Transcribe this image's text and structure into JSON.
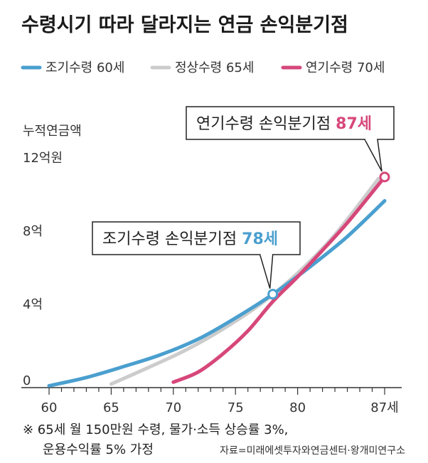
{
  "chart_data": {
    "type": "line",
    "title": "수령시기 따라 달라지는 연금 손익분기점",
    "ylabel": "누적연금액",
    "yunit": "12억원",
    "xlim": [
      60,
      87
    ],
    "ylim": [
      0,
      12
    ],
    "x_ticks": [
      60,
      65,
      70,
      75,
      80,
      87
    ],
    "x_tick_labels": [
      "60",
      "65",
      "70",
      "75",
      "80",
      "87세"
    ],
    "y_ticks": [
      0,
      4,
      8,
      12
    ],
    "y_tick_labels": [
      "0",
      "4억",
      "8억",
      "12억원"
    ],
    "colors": {
      "early": "#4a9fcf",
      "normal": "#cccccc",
      "late": "#d6477a",
      "axis": "#333333"
    },
    "series": [
      {
        "name": "조기수령 60세",
        "key": "early",
        "color": "#4a9fcf",
        "x": [
          60,
          63,
          66,
          69,
          72,
          75,
          78,
          81,
          84,
          87
        ],
        "y": [
          0.1,
          0.55,
          1.15,
          1.8,
          2.65,
          3.8,
          5.1,
          6.6,
          8.25,
          10.2
        ]
      },
      {
        "name": "정상수령 65세",
        "key": "normal",
        "color": "#cccccc",
        "x": [
          65,
          68,
          71,
          74,
          77,
          80,
          83,
          86.5
        ],
        "y": [
          0.2,
          1.1,
          2.05,
          3.2,
          4.55,
          6.25,
          8.35,
          11.4
        ]
      },
      {
        "name": "연기수령 70세",
        "key": "late",
        "color": "#d6477a",
        "x": [
          70,
          72,
          74,
          76,
          78,
          80,
          82,
          84,
          87
        ],
        "y": [
          0.3,
          0.85,
          1.85,
          3.1,
          4.7,
          6.05,
          7.5,
          9.0,
          11.5
        ]
      }
    ],
    "annotations": [
      {
        "text": "조기수령 손익분기점 ",
        "value": "78세",
        "x": 78,
        "y": 5.1,
        "color": "#4a9fcf"
      },
      {
        "text": "연기수령 손익분기점 ",
        "value": "87세",
        "x": 87,
        "y": 11.5,
        "color": "#d6477a"
      }
    ],
    "legend_position": "top",
    "grid": false
  },
  "footnote": {
    "line1": "※ 65세 월 150만원 수령, 물가·소득 상승률 3%,",
    "line2": "운용수익률 5% 가정",
    "source": "자료=미래에셋투자와연금센터·왕개미연구소"
  }
}
